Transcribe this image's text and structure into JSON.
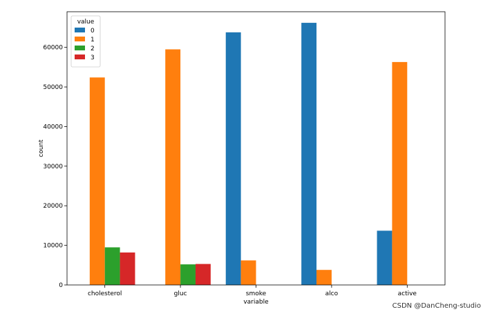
{
  "chart_data": {
    "type": "bar",
    "title": "",
    "xlabel": "variable",
    "ylabel": "count",
    "categories": [
      "cholesterol",
      "gluc",
      "smoke",
      "alco",
      "active"
    ],
    "ylim": [
      0,
      69000
    ],
    "yticks": [
      0,
      10000,
      20000,
      30000,
      40000,
      50000,
      60000
    ],
    "ytick_labels": [
      "0",
      "10000",
      "20000",
      "30000",
      "40000",
      "50000",
      "60000"
    ],
    "grid": false,
    "legend": {
      "title": "value",
      "position": "top-left",
      "entries": [
        "0",
        "1",
        "2",
        "3"
      ]
    },
    "series": [
      {
        "name": "0",
        "color": "#1f77b4",
        "values": [
          0,
          0,
          63800,
          66200,
          13700
        ]
      },
      {
        "name": "1",
        "color": "#ff7f0e",
        "values": [
          52400,
          59500,
          6200,
          3800,
          56300
        ]
      },
      {
        "name": "2",
        "color": "#2ca02c",
        "values": [
          9500,
          5200,
          0,
          0,
          0
        ]
      },
      {
        "name": "3",
        "color": "#d62728",
        "values": [
          8200,
          5300,
          0,
          0,
          0
        ]
      }
    ]
  },
  "watermark": "CSDN @DanCheng-studio"
}
